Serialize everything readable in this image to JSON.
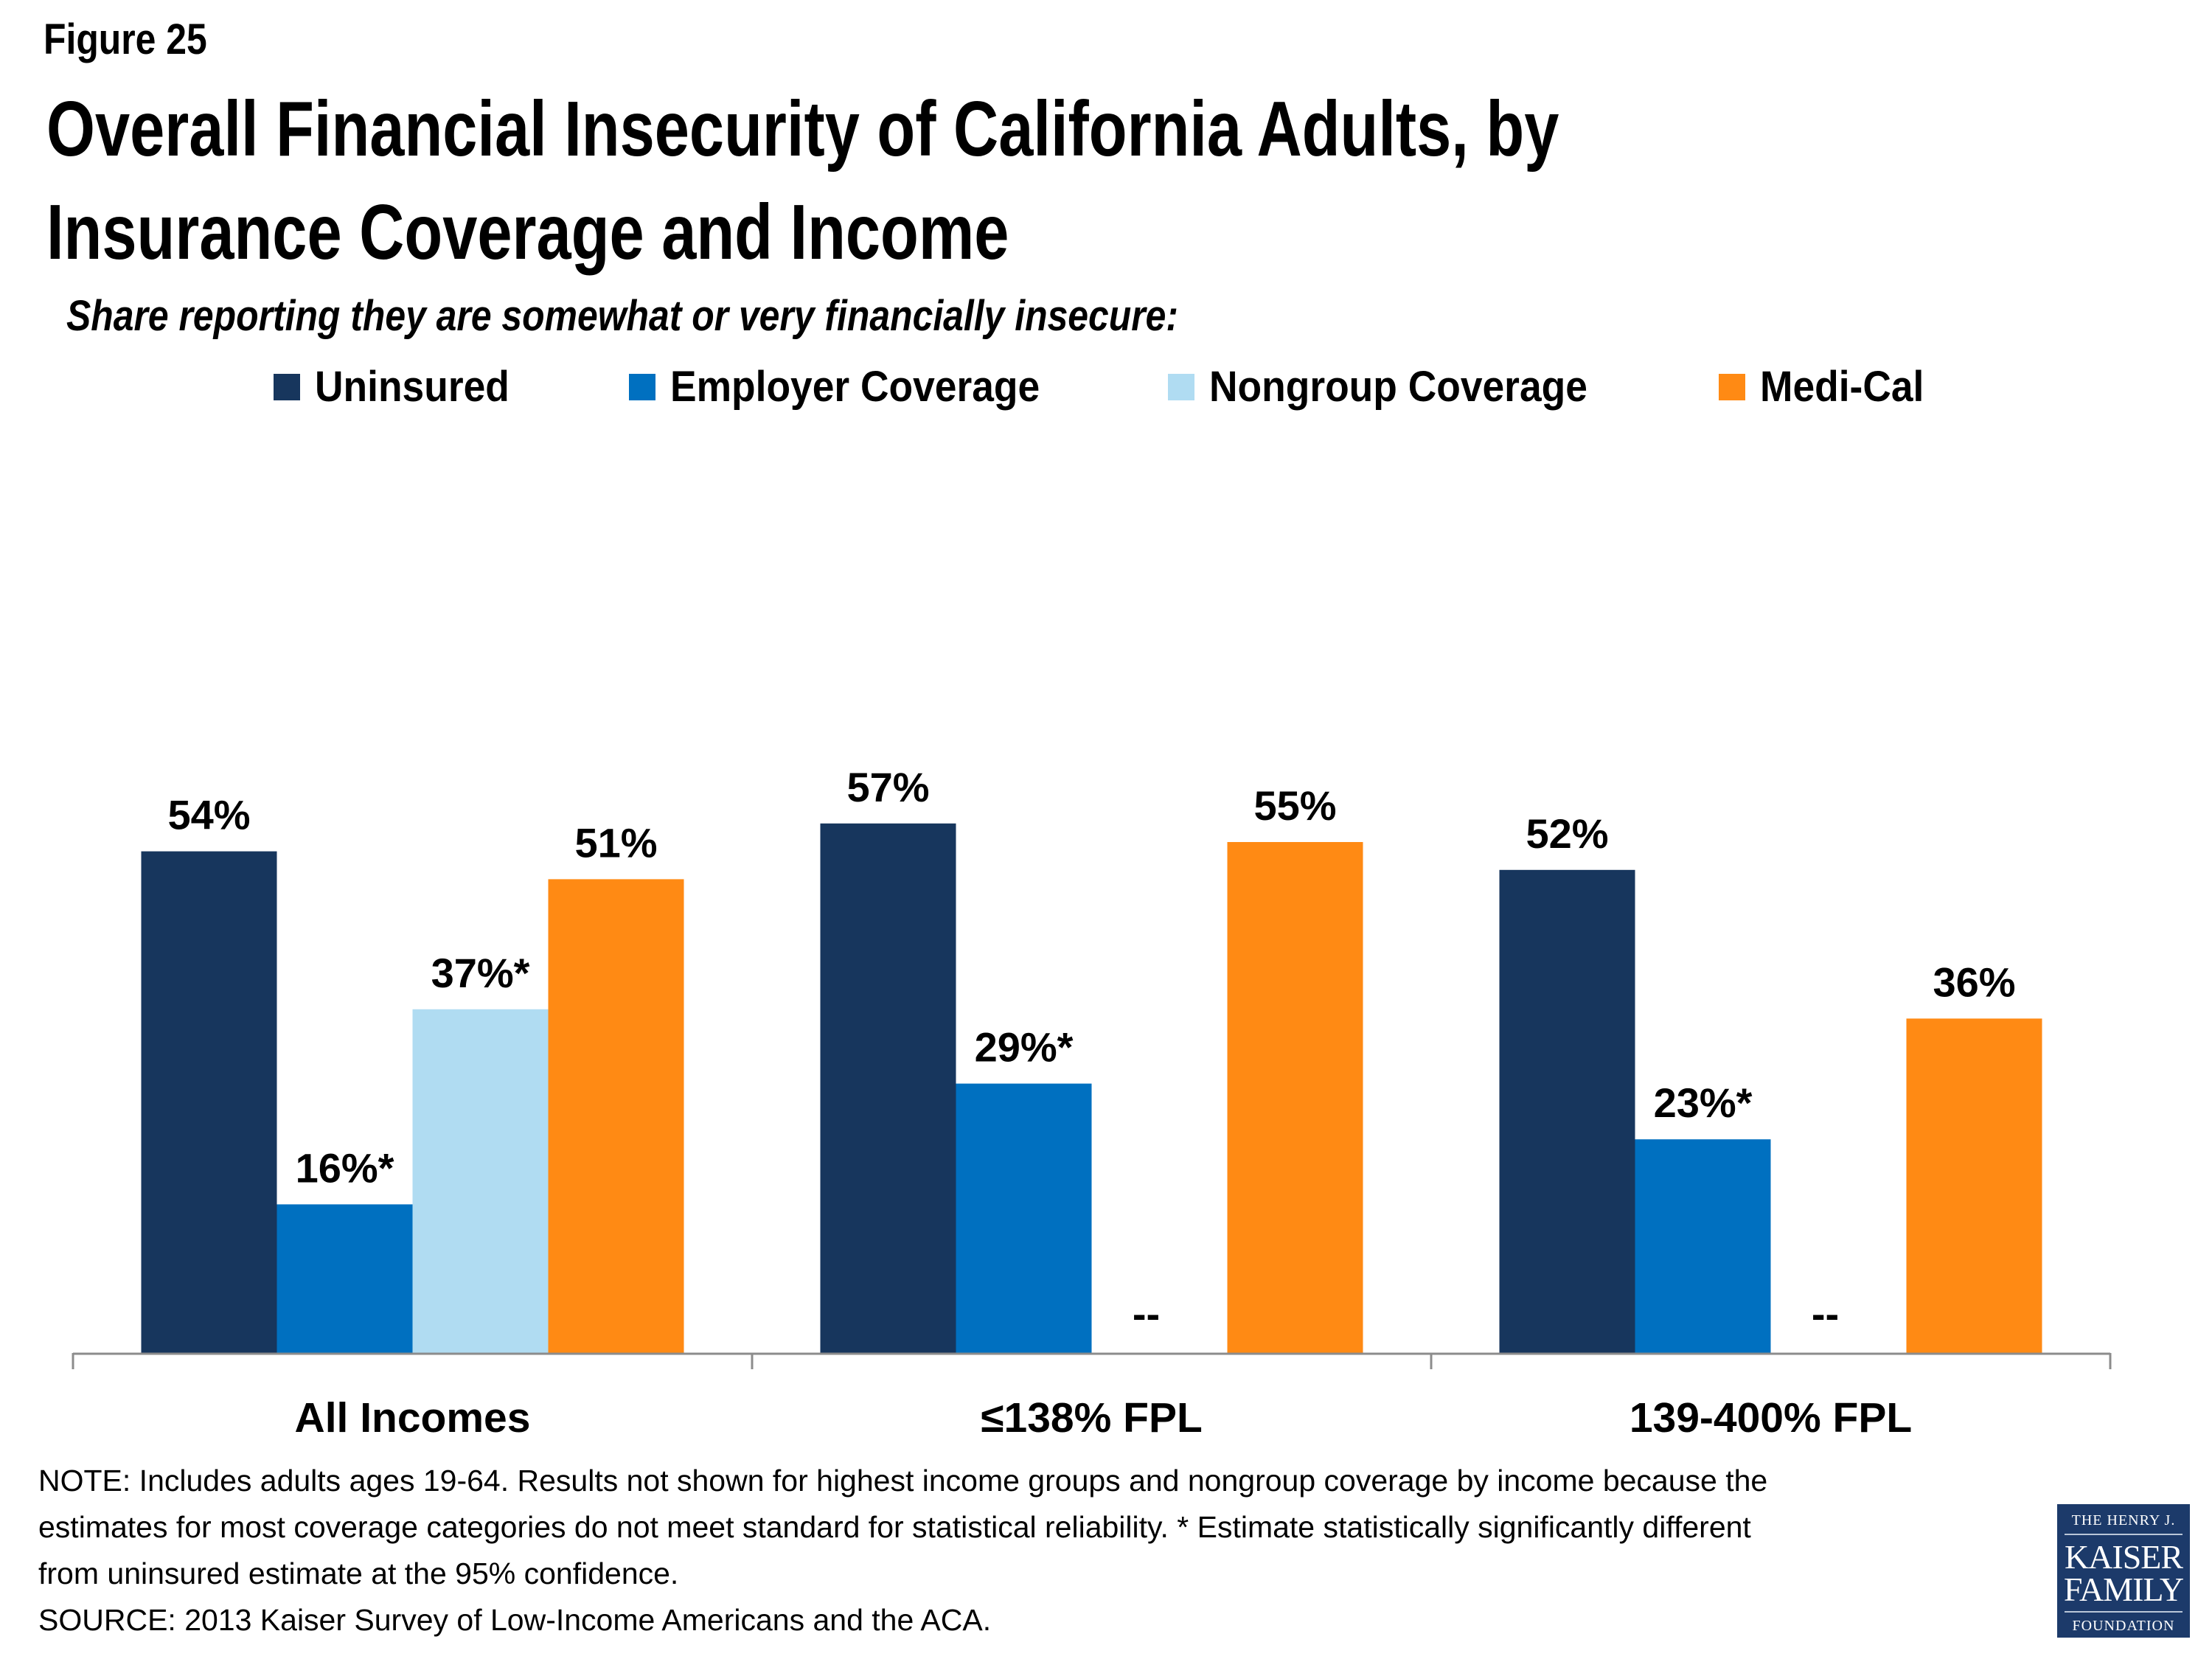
{
  "header": {
    "figure_label": "Figure 25",
    "title_line1": "Overall Financial Insecurity of California Adults, by",
    "title_line2": "Insurance Coverage and Income",
    "subtitle": "Share reporting they are somewhat or very financially insecure:"
  },
  "legend": [
    {
      "label": "Uninsured",
      "color": "#17365D"
    },
    {
      "label": "Employer Coverage",
      "color": "#0070C0"
    },
    {
      "label": "Nongroup Coverage",
      "color": "#B0DCF2"
    },
    {
      "label": "Medi-Cal",
      "color": "#FF8A14"
    }
  ],
  "chart_data": {
    "type": "bar",
    "title": "Overall Financial Insecurity of California Adults, by Insurance Coverage and Income",
    "subtitle": "Share reporting they are somewhat or very financially insecure:",
    "xlabel": "",
    "ylabel": "",
    "ylim": [
      0,
      100
    ],
    "grid": false,
    "legend_position": "top",
    "categories": [
      "All Incomes",
      "≤138% FPL",
      "139-400% FPL"
    ],
    "series": [
      {
        "name": "Uninsured",
        "color": "#17365D",
        "values": [
          54,
          57,
          52
        ],
        "labels": [
          "54%",
          "57%",
          "52%"
        ]
      },
      {
        "name": "Employer Coverage",
        "color": "#0070C0",
        "values": [
          16,
          29,
          23
        ],
        "labels": [
          "16%*",
          "29%*",
          "23%*"
        ]
      },
      {
        "name": "Nongroup Coverage",
        "color": "#B0DCF2",
        "values": [
          37,
          null,
          null
        ],
        "labels": [
          "37%*",
          "--",
          "--"
        ]
      },
      {
        "name": "Medi-Cal",
        "color": "#FF8A14",
        "values": [
          51,
          55,
          36
        ],
        "labels": [
          "51%",
          "55%",
          "36%"
        ]
      }
    ],
    "axis_color": "#8C8C8C"
  },
  "footer": {
    "note_lines": [
      "NOTE: Includes adults ages 19-64. Results not shown for highest income groups and nongroup coverage by income because the",
      "estimates for most coverage categories do not meet standard for statistical reliability. * Estimate statistically significantly different",
      "from uninsured estimate  at the 95% confidence.",
      "SOURCE: 2013 Kaiser Survey of Low-Income Americans and the ACA."
    ]
  },
  "logo": {
    "line1": "THE HENRY J.",
    "line2": "KAISER",
    "line3": "FAMILY",
    "line4": "FOUNDATION",
    "color": "#1C3A6A"
  }
}
